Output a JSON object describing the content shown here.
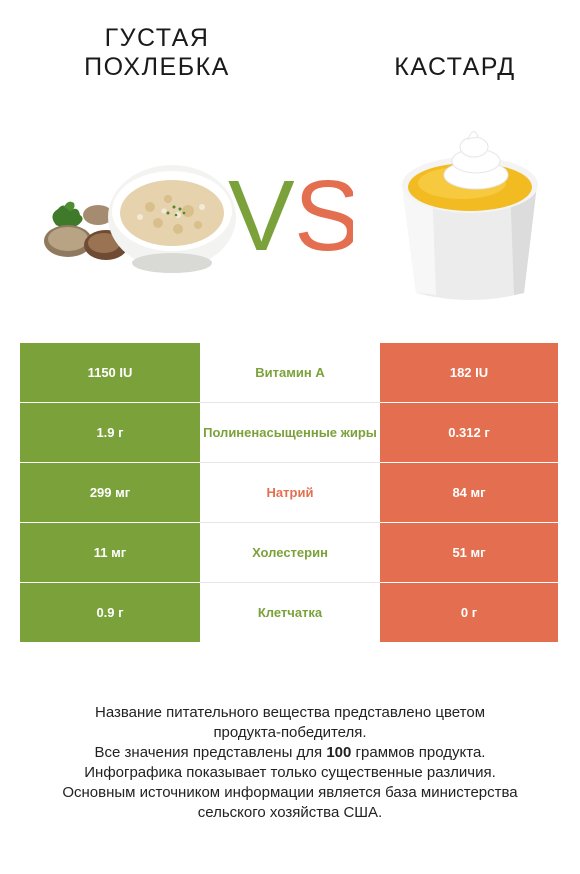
{
  "left_food": {
    "name": "Густая похлебка",
    "color": "#7ba23a",
    "image": "clam-chowder-bowl"
  },
  "right_food": {
    "name": "Кастард",
    "color": "#e46f50",
    "image": "custard-cup"
  },
  "vs_label": {
    "v": "V",
    "s": "S"
  },
  "rows": [
    {
      "nutrient": "Витамин A",
      "left": "1150 IU",
      "right": "182 IU",
      "winner": "left"
    },
    {
      "nutrient": "Полиненасыщенные жиры",
      "left": "1.9 г",
      "right": "0.312 г",
      "winner": "left"
    },
    {
      "nutrient": "Натрий",
      "left": "299 мг",
      "right": "84 мг",
      "winner": "right"
    },
    {
      "nutrient": "Холестерин",
      "left": "11 мг",
      "right": "51 мг",
      "winner": "left"
    },
    {
      "nutrient": "Клетчатка",
      "left": "0.9 г",
      "right": "0 г",
      "winner": "left"
    }
  ],
  "footer": {
    "line1": "Название питательного вещества представлено цветом",
    "line2": "продукта-победителя.",
    "line3_prefix": "Все значения представлены для ",
    "line3_bold": "100",
    "line3_suffix": " граммов продукта.",
    "line4": "Инфографика показывает только существенные различия.",
    "line5": "Основным источником информации является база министерства",
    "line6": "сельского хозяйства США."
  }
}
